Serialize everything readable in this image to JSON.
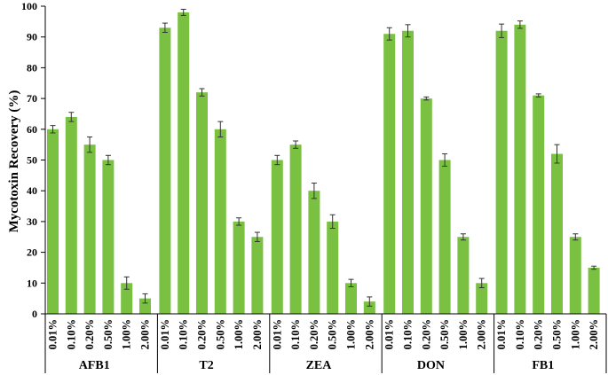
{
  "chart_data": {
    "type": "bar",
    "ylabel": "Mycotoxin Recovery (%)",
    "xlabel": "",
    "ylim": [
      0,
      100
    ],
    "yticks": [
      0,
      10,
      20,
      30,
      40,
      50,
      60,
      70,
      80,
      90,
      100
    ],
    "bar_color": "#7ac142",
    "categories": [
      "0.01%",
      "0.10%",
      "0.20%",
      "0.50%",
      "1.00%",
      "2.00%"
    ],
    "groups": [
      {
        "name": "AFB1",
        "values": [
          60,
          64,
          55,
          50,
          10,
          5
        ],
        "errors": [
          1.2,
          1.5,
          2.5,
          1.5,
          2.0,
          1.5
        ]
      },
      {
        "name": "T2",
        "values": [
          93,
          98,
          72,
          60,
          30,
          25
        ],
        "errors": [
          1.5,
          1.0,
          1.2,
          2.5,
          1.2,
          1.5
        ]
      },
      {
        "name": "ZEA",
        "values": [
          50,
          55,
          40,
          30,
          10,
          4
        ],
        "errors": [
          1.5,
          1.2,
          2.5,
          2.2,
          1.2,
          1.5
        ]
      },
      {
        "name": "DON",
        "values": [
          91,
          92,
          70,
          50,
          25,
          10
        ],
        "errors": [
          2.0,
          2.0,
          0.5,
          2.0,
          1.0,
          1.5
        ]
      },
      {
        "name": "FB1",
        "values": [
          92,
          94,
          71,
          52,
          25,
          15
        ],
        "errors": [
          2.2,
          1.2,
          0.5,
          3.0,
          1.0,
          0.5
        ]
      }
    ]
  }
}
